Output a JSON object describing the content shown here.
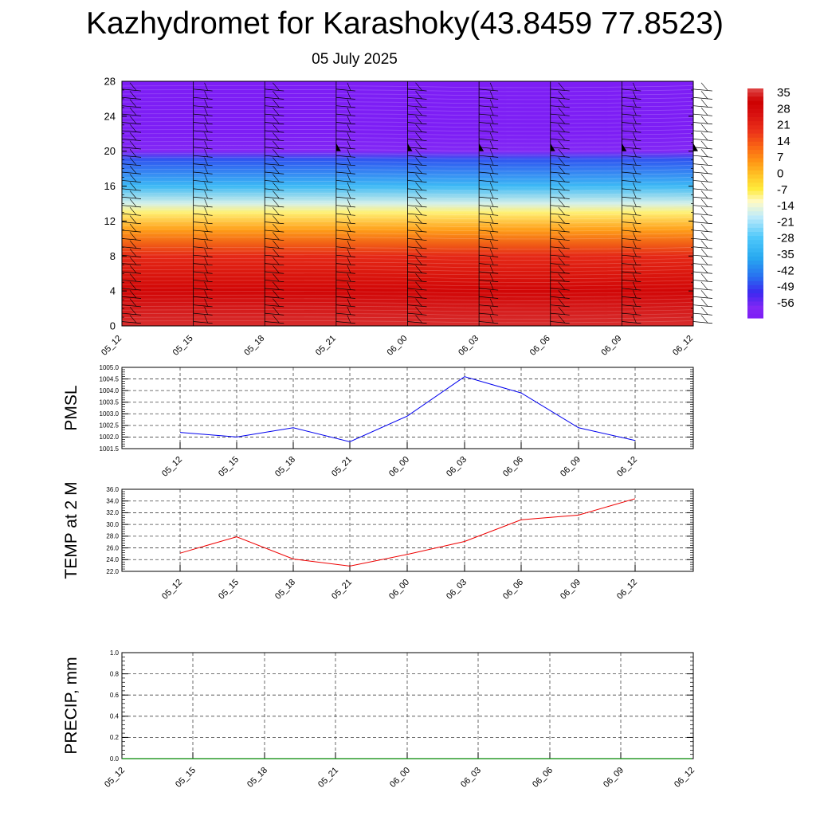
{
  "header": {
    "title": "Kazhydromet for Karashoky(43.8459 77.8523)",
    "date": "05 July 2025"
  },
  "chart_data": [
    {
      "type": "heatmap",
      "title": "",
      "x_tick_labels": [
        "05_12",
        "05_15",
        "05_18",
        "05_21",
        "06_00",
        "06_03",
        "06_06",
        "06_09",
        "06_12"
      ],
      "y_ticks": [
        0,
        4,
        8,
        12,
        16,
        20,
        24,
        28
      ],
      "ylim": [
        0,
        28
      ],
      "colorbar": {
        "labels": [
          "35",
          "28",
          "21",
          "14",
          "7",
          "0",
          "-7",
          "-14",
          "-21",
          "-28",
          "-35",
          "-42",
          "-49",
          "-56"
        ],
        "range": [
          -56,
          35
        ]
      },
      "temperature_profile": [
        {
          "height": 0,
          "value": 33
        },
        {
          "height": 4,
          "value": 28
        },
        {
          "height": 8,
          "value": 20
        },
        {
          "height": 11,
          "value": 5
        },
        {
          "height": 13,
          "value": -7
        },
        {
          "height": 14,
          "value": -14
        },
        {
          "height": 16,
          "value": -28
        },
        {
          "height": 19,
          "value": -42
        },
        {
          "height": 20,
          "value": -52
        },
        {
          "height": 22,
          "value": -56
        },
        {
          "height": 28,
          "value": -56
        }
      ],
      "wind_barbs": "present at each time column and height level"
    },
    {
      "type": "line",
      "ylabel": "PMSL",
      "x": [
        "05_12",
        "05_15",
        "05_18",
        "05_21",
        "06_00",
        "06_03",
        "06_06",
        "06_09",
        "06_12"
      ],
      "y_tick_labels": [
        "1001.5",
        "1002.0",
        "1002.5",
        "1003.0",
        "1003.5",
        "1004.0",
        "1004.5",
        "1005.0"
      ],
      "ylim": [
        1001.5,
        1005.0
      ],
      "series": [
        {
          "values": [
            1002.2,
            1002.0,
            1002.4,
            1001.8,
            1002.9,
            1004.6,
            1003.9,
            1002.4,
            1001.85
          ],
          "color": "#0000ee"
        }
      ],
      "grid": true
    },
    {
      "type": "line",
      "ylabel": "TEMP at 2 M",
      "x": [
        "05_12",
        "05_15",
        "05_18",
        "05_21",
        "06_00",
        "06_03",
        "06_06",
        "06_09",
        "06_12"
      ],
      "y_tick_labels": [
        "22.0",
        "24.0",
        "26.0",
        "28.0",
        "30.0",
        "32.0",
        "34.0",
        "36.0"
      ],
      "ylim": [
        22.0,
        36.0
      ],
      "series": [
        {
          "values": [
            25.1,
            27.9,
            24.1,
            22.9,
            24.9,
            27.1,
            30.8,
            31.6,
            34.4
          ],
          "color": "#ee0000"
        }
      ],
      "grid": true
    },
    {
      "type": "line",
      "ylabel": "PRECIP, mm",
      "x": [
        "05_12",
        "05_15",
        "05_18",
        "05_21",
        "06_00",
        "06_03",
        "06_06",
        "06_09",
        "06_12"
      ],
      "y_tick_labels": [
        "0.0",
        "0.2",
        "0.4",
        "0.6",
        "0.8",
        "1.0"
      ],
      "ylim": [
        0.0,
        1.0
      ],
      "series": [
        {
          "values": [
            0,
            0,
            0,
            0,
            0,
            0,
            0,
            0,
            0
          ],
          "color": "#008800"
        }
      ],
      "grid": true
    }
  ]
}
